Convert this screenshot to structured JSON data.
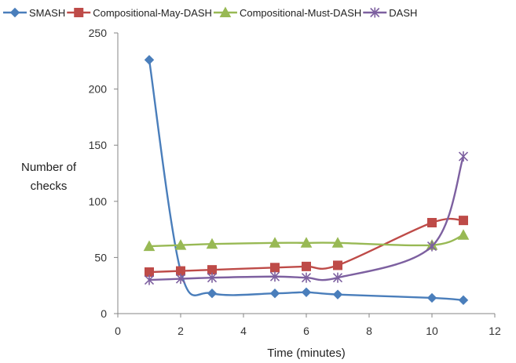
{
  "chart_data": {
    "type": "line",
    "xlabel": "Time (minutes)",
    "ylabel": [
      "Number of",
      "checks"
    ],
    "xlim": [
      0,
      12
    ],
    "ylim": [
      0,
      250
    ],
    "xticks": [
      "0",
      "2",
      "4",
      "6",
      "8",
      "10",
      "12"
    ],
    "yticks": [
      "0",
      "50",
      "100",
      "150",
      "200",
      "250"
    ],
    "grid": false,
    "legend_position": "top",
    "smooth_lines": true,
    "series": [
      {
        "name": "SMASH",
        "color": "#4a7ebb",
        "marker": "diamond",
        "points": [
          [
            1,
            226
          ],
          [
            2,
            38
          ],
          [
            3,
            18
          ],
          [
            5,
            18
          ],
          [
            6,
            19
          ],
          [
            7,
            17
          ],
          [
            10,
            14
          ],
          [
            11,
            12
          ]
        ]
      },
      {
        "name": "Compositional-May-DASH",
        "color": "#be4b48",
        "marker": "square",
        "points": [
          [
            1,
            37
          ],
          [
            2,
            38
          ],
          [
            3,
            39
          ],
          [
            5,
            41
          ],
          [
            6,
            42
          ],
          [
            7,
            43
          ],
          [
            10,
            81
          ],
          [
            11,
            83
          ]
        ]
      },
      {
        "name": "Compositional-Must-DASH",
        "color": "#98b954",
        "marker": "triangle",
        "points": [
          [
            1,
            60
          ],
          [
            2,
            61
          ],
          [
            3,
            62
          ],
          [
            5,
            63
          ],
          [
            6,
            63
          ],
          [
            7,
            63
          ],
          [
            10,
            61
          ],
          [
            11,
            70
          ]
        ]
      },
      {
        "name": "DASH",
        "color": "#7d60a0",
        "marker": "star",
        "points": [
          [
            1,
            30
          ],
          [
            2,
            31
          ],
          [
            3,
            32
          ],
          [
            5,
            33
          ],
          [
            6,
            32
          ],
          [
            7,
            32
          ],
          [
            10,
            60
          ],
          [
            11,
            140
          ]
        ]
      }
    ]
  }
}
